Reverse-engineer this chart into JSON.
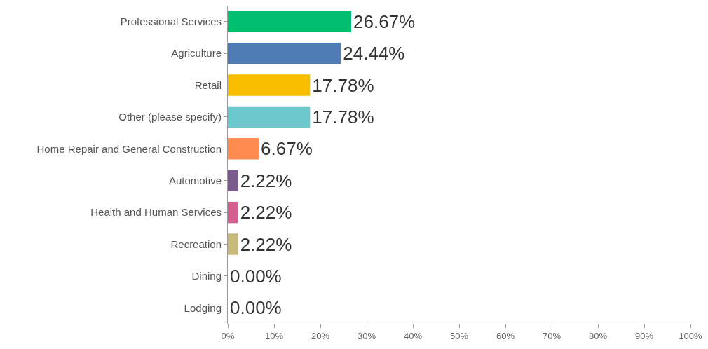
{
  "chart_data": {
    "type": "bar",
    "orientation": "horizontal",
    "categories": [
      "Professional Services",
      "Agriculture",
      "Retail",
      "Other (please specify)",
      "Home Repair and General Construction",
      "Automotive",
      "Health and Human Services",
      "Recreation",
      "Dining",
      "Lodging"
    ],
    "values": [
      26.67,
      24.44,
      17.78,
      17.78,
      6.67,
      2.22,
      2.22,
      2.22,
      0,
      0
    ],
    "value_labels": [
      "26.67%",
      "24.44%",
      "17.78%",
      "17.78%",
      "6.67%",
      "2.22%",
      "2.22%",
      "2.22%",
      "0.00%",
      "0.00%"
    ],
    "colors": [
      "#00bf6f",
      "#507cb6",
      "#f9be00",
      "#6bc8cd",
      "#ff8b4f",
      "#7d5a8e",
      "#d25f90",
      "#c9b97a",
      "#888888",
      "#888888"
    ],
    "xlim": [
      0,
      100
    ],
    "xticks": [
      {
        "value": 0,
        "label": "0%"
      },
      {
        "value": 10,
        "label": "10%"
      },
      {
        "value": 20,
        "label": "20%"
      },
      {
        "value": 30,
        "label": "30%"
      },
      {
        "value": 40,
        "label": "40%"
      },
      {
        "value": 50,
        "label": "50%"
      },
      {
        "value": 60,
        "label": "60%"
      },
      {
        "value": 70,
        "label": "70%"
      },
      {
        "value": 80,
        "label": "80%"
      },
      {
        "value": 90,
        "label": "90%"
      },
      {
        "value": 100,
        "label": "100%"
      }
    ]
  }
}
